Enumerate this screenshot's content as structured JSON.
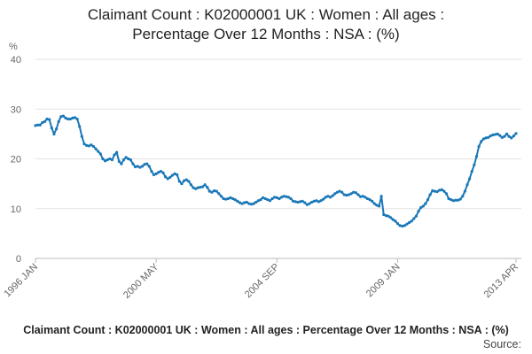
{
  "chart_data": {
    "type": "line",
    "title": [
      "Claimant Count : K02000001 UK : Women : All ages :",
      "Percentage Over 12 Months : NSA : (%)"
    ],
    "y_label": "%",
    "footer": "Claimant Count : K02000001 UK : Women : All ages : Percentage Over 12 Months : NSA : (%)",
    "source": "Source:",
    "categories": [
      "1996 JAN",
      null,
      null,
      null,
      null,
      null,
      null,
      null,
      null,
      null,
      null,
      null,
      null,
      null,
      null,
      null,
      null,
      null,
      null,
      null,
      null,
      null,
      null,
      null,
      null,
      null,
      null,
      null,
      null,
      null,
      null,
      null,
      null,
      null,
      null,
      null,
      null,
      null,
      null,
      null,
      null,
      null,
      null,
      null,
      null,
      null,
      null,
      null,
      null,
      null,
      null,
      null,
      "2000 MAY",
      null,
      null,
      null,
      null,
      null,
      null,
      null,
      null,
      null,
      null,
      null,
      null,
      null,
      null,
      null,
      null,
      null,
      null,
      null,
      null,
      null,
      null,
      null,
      null,
      null,
      null,
      null,
      null,
      null,
      null,
      null,
      null,
      null,
      null,
      null,
      null,
      null,
      null,
      null,
      null,
      null,
      null,
      null,
      null,
      null,
      null,
      null,
      null,
      null,
      null,
      null,
      "2004 SEP",
      null,
      null,
      null,
      null,
      null,
      null,
      null,
      null,
      null,
      null,
      null,
      null,
      null,
      null,
      null,
      null,
      null,
      null,
      null,
      null,
      null,
      null,
      null,
      null,
      null,
      null,
      null,
      null,
      null,
      null,
      null,
      null,
      null,
      null,
      null,
      null,
      null,
      null,
      null,
      null,
      null,
      null,
      null,
      null,
      null,
      null,
      null,
      null,
      null,
      null,
      null,
      "2009 JAN",
      null,
      null,
      null,
      null,
      null,
      null,
      null,
      null,
      null,
      null,
      null,
      null,
      null,
      null,
      null,
      null,
      null,
      null,
      null,
      null,
      null,
      null,
      null,
      null,
      null,
      null,
      null,
      null,
      null,
      null,
      null,
      null,
      null,
      null,
      null,
      null,
      null,
      null,
      null,
      null,
      null,
      null,
      null,
      null,
      null,
      null,
      null,
      null,
      null,
      null,
      "2013 APR"
    ],
    "series": [
      {
        "name": "Women",
        "color": "#1a78b8",
        "values": [
          26.7,
          26.8,
          26.8,
          27.3,
          27.5,
          28.0,
          27.9,
          26.2,
          25.0,
          26.0,
          27.5,
          28.5,
          28.6,
          28.2,
          28.0,
          28.0,
          28.2,
          28.3,
          28.0,
          26.5,
          24.5,
          23.0,
          22.7,
          22.6,
          22.8,
          22.5,
          22.0,
          21.5,
          21.0,
          20.0,
          19.6,
          19.8,
          20.0,
          19.8,
          20.8,
          21.3,
          19.5,
          19.0,
          19.8,
          20.3,
          20.0,
          19.8,
          19.0,
          18.4,
          18.5,
          18.3,
          18.5,
          18.9,
          19.0,
          18.5,
          17.5,
          16.8,
          17.0,
          17.3,
          17.5,
          17.2,
          16.4,
          16.0,
          16.3,
          16.7,
          17.0,
          16.8,
          15.5,
          15.0,
          15.6,
          15.8,
          15.5,
          14.8,
          14.2,
          14.0,
          14.2,
          14.3,
          14.4,
          14.8,
          14.3,
          13.5,
          13.3,
          13.6,
          13.5,
          13.0,
          12.5,
          12.0,
          11.9,
          12.0,
          12.2,
          12.0,
          11.8,
          11.5,
          11.2,
          11.0,
          11.2,
          11.3,
          11.0,
          10.9,
          11.0,
          11.3,
          11.6,
          11.8,
          12.2,
          12.0,
          11.8,
          11.6,
          12.0,
          12.3,
          12.2,
          12.0,
          12.3,
          12.5,
          12.4,
          12.3,
          12.0,
          11.5,
          11.4,
          11.3,
          11.4,
          11.5,
          11.2,
          10.8,
          11.0,
          11.3,
          11.5,
          11.6,
          11.4,
          11.6,
          11.9,
          12.3,
          12.5,
          12.3,
          12.6,
          13.0,
          13.3,
          13.5,
          13.3,
          12.8,
          12.7,
          12.8,
          13.0,
          13.3,
          13.2,
          12.8,
          12.4,
          12.5,
          12.3,
          12.0,
          11.8,
          11.5,
          11.0,
          10.7,
          10.5,
          12.5,
          8.8,
          8.6,
          8.5,
          8.2,
          7.8,
          7.5,
          7.0,
          6.6,
          6.5,
          6.6,
          6.9,
          7.2,
          7.5,
          8.0,
          8.5,
          9.5,
          10.2,
          10.5,
          11.0,
          11.8,
          12.8,
          13.6,
          13.5,
          13.4,
          13.7,
          13.8,
          13.5,
          13.0,
          12.0,
          11.8,
          11.6,
          11.7,
          11.7,
          11.9,
          12.5,
          13.5,
          14.8,
          16.0,
          17.5,
          18.8,
          20.5,
          22.5,
          23.5,
          24.0,
          24.2,
          24.3,
          24.6,
          24.8,
          24.9,
          25.0,
          24.7,
          24.3,
          24.5,
          25.0,
          24.5,
          24.2,
          24.6,
          25.1
        ]
      }
    ],
    "ylim": [
      0,
      40
    ],
    "yticks": [
      0,
      10,
      20,
      30,
      40
    ],
    "grid": true
  }
}
